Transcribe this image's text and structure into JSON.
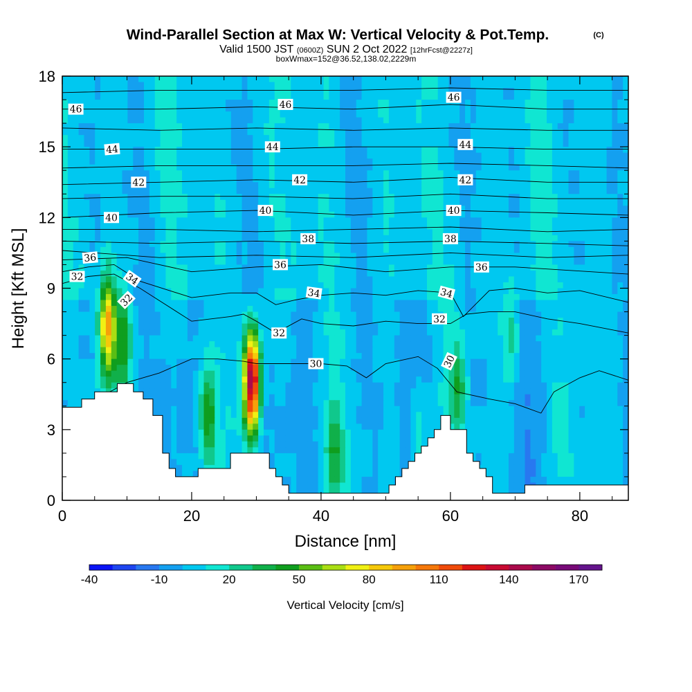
{
  "title": {
    "main": "Wind-Parallel Section at Max W: Vertical Velocity & Pot.Temp.",
    "copyright": "(C)",
    "valid_prefix": "Valid 1500 JST",
    "valid_zulu": "(0600Z)",
    "valid_date": "SUN 2 Oct 2022",
    "forecast_info": "[12hrFcst@2227z]",
    "box_info": "boxWmax=152@36.52,138.02,2229m"
  },
  "chart_data": {
    "type": "heatmap",
    "xlabel": "Distance [nm]",
    "ylabel": "Height [Kft MSL]",
    "xlim": [
      0,
      87.5
    ],
    "ylim": [
      0,
      18
    ],
    "x_ticks": [
      "0",
      "20",
      "40",
      "60",
      "80"
    ],
    "y_ticks": [
      "0",
      "3",
      "6",
      "9",
      "12",
      "15",
      "18"
    ],
    "colorbar": {
      "label": "Vertical Velocity [cm/s]",
      "tick_labels": [
        "-40",
        "-10",
        "20",
        "50",
        "80",
        "110",
        "140",
        "170"
      ],
      "levels": [
        -40,
        -30,
        -20,
        -10,
        0,
        10,
        20,
        30,
        40,
        50,
        60,
        70,
        80,
        90,
        100,
        110,
        120,
        130,
        140,
        150,
        160,
        170,
        180
      ],
      "colors": [
        "#0a14f5",
        "#1e46f0",
        "#2878f0",
        "#14a0f0",
        "#00c8f0",
        "#10e6d2",
        "#10c88c",
        "#10b04a",
        "#0f9e1e",
        "#5abe14",
        "#aade14",
        "#f0f014",
        "#f5c80a",
        "#f5a00a",
        "#f5780a",
        "#f04b0a",
        "#dc1414",
        "#c80a32",
        "#aa0a4b",
        "#8c0a64",
        "#780a78",
        "#64148c"
      ]
    },
    "background_value": 5,
    "updraft_cells": [
      {
        "x": 7.0,
        "y": 7.3,
        "peak": 90
      },
      {
        "x": 9.5,
        "y": 6.7,
        "peak": 40
      },
      {
        "x": 22.5,
        "y": 3.6,
        "peak": 50
      },
      {
        "x": 29.3,
        "y": 5.0,
        "peak": 152
      },
      {
        "x": 42.0,
        "y": 2.0,
        "peak": 30
      },
      {
        "x": 61.2,
        "y": 4.9,
        "peak": 32
      },
      {
        "x": 69.5,
        "y": 7.0,
        "peak": 25
      },
      {
        "x": 55.0,
        "y": 2.8,
        "peak": 22
      }
    ],
    "terrain": {
      "distance": [
        0,
        3,
        3,
        5,
        5,
        8.5,
        8.5,
        11,
        11,
        12.5,
        12.5,
        14,
        14,
        15.5,
        15.5,
        16.5,
        16.5,
        17.5,
        17.5,
        21,
        21,
        26,
        26,
        32,
        32,
        33,
        33,
        34,
        34,
        35,
        35,
        36,
        36,
        37,
        37,
        38,
        38,
        50.5,
        50.5,
        51.5,
        51.5,
        52.5,
        52.5,
        53.5,
        53.5,
        54.5,
        54.5,
        55.5,
        55.5,
        56.5,
        56.5,
        57.5,
        57.5,
        58.5,
        58.5,
        60,
        60,
        62.5,
        62.5,
        63.5,
        63.5,
        64.5,
        64.5,
        65.5,
        65.5,
        66.5,
        66.5,
        71.5,
        71.5,
        74.5,
        74.5,
        87.5
      ],
      "height": [
        3.95,
        3.95,
        4.3,
        4.3,
        4.6,
        4.6,
        4.95,
        4.95,
        4.6,
        4.6,
        4.3,
        4.3,
        3.6,
        3.6,
        2.0,
        2.0,
        1.35,
        1.35,
        1.0,
        1.0,
        1.35,
        1.35,
        2.0,
        2.0,
        1.35,
        1.35,
        1.0,
        1.0,
        0.65,
        0.65,
        0.3,
        0.3,
        0.3,
        0.3,
        0.3,
        0.3,
        0.3,
        0.3,
        0.65,
        0.65,
        1.0,
        1.0,
        1.35,
        1.35,
        1.65,
        1.65,
        2.0,
        2.0,
        2.3,
        2.3,
        2.65,
        2.65,
        3.0,
        3.0,
        3.6,
        3.6,
        3.0,
        3.0,
        2.0,
        2.0,
        1.65,
        1.65,
        1.35,
        1.35,
        1.0,
        1.0,
        0.3,
        0.3,
        0.65,
        0.65,
        0.65,
        0.65
      ]
    },
    "theta_contours": [
      {
        "level": 30,
        "x": [
          3.0,
          10,
          15,
          20,
          24,
          28,
          30,
          35,
          40,
          44,
          47,
          50,
          55,
          58,
          61,
          66,
          70,
          72,
          74,
          76,
          80,
          83,
          87.5
        ],
        "y": [
          3.95,
          5.0,
          5.4,
          6.0,
          6.0,
          5.9,
          5.8,
          5.8,
          5.8,
          5.7,
          5.2,
          5.8,
          6.1,
          5.6,
          4.6,
          4.3,
          4.1,
          3.9,
          3.7,
          4.6,
          5.2,
          5.5,
          5.1
        ]
      },
      {
        "level": 32,
        "x": [
          0,
          4,
          8,
          12,
          20,
          26,
          28,
          30,
          33,
          37,
          40,
          45,
          50,
          55,
          60,
          62.5,
          66,
          70,
          75,
          80,
          87.5
        ],
        "y": [
          9.2,
          9.5,
          9.6,
          9.0,
          7.6,
          7.8,
          7.9,
          7.6,
          7.1,
          7.7,
          7.5,
          7.4,
          7.6,
          7.5,
          7.5,
          7.9,
          8.0,
          8.0,
          7.7,
          7.5,
          7.1
        ]
      },
      {
        "level": 34,
        "x": [
          0,
          4,
          8,
          12,
          20,
          26,
          30,
          33,
          36,
          40,
          45,
          50,
          55,
          60,
          62,
          66,
          70,
          75,
          80,
          87.5
        ],
        "y": [
          9.7,
          9.9,
          10.0,
          9.3,
          8.6,
          8.8,
          8.8,
          8.3,
          8.5,
          8.7,
          8.8,
          8.7,
          8.9,
          8.8,
          7.8,
          8.9,
          9.0,
          8.8,
          8.9,
          8.4
        ]
      },
      {
        "level": 36,
        "x": [
          0,
          10,
          20,
          30,
          40,
          50,
          60,
          70,
          87.5
        ],
        "y": [
          10.2,
          10.3,
          9.7,
          9.9,
          10.0,
          9.7,
          9.9,
          9.9,
          9.6
        ]
      },
      {
        "level": 37,
        "x": [
          0,
          15,
          30,
          45,
          60,
          75,
          87.5
        ],
        "y": [
          10.6,
          10.3,
          10.4,
          10.3,
          10.5,
          10.3,
          10.4
        ]
      },
      {
        "level": 38,
        "x": [
          0,
          15,
          30,
          45,
          60,
          75,
          87.5
        ],
        "y": [
          11.0,
          10.9,
          11.0,
          10.9,
          11.0,
          10.9,
          10.8
        ]
      },
      {
        "level": 39,
        "x": [
          0,
          15,
          30,
          45,
          60,
          75,
          87.5
        ],
        "y": [
          11.5,
          11.5,
          11.4,
          11.5,
          11.6,
          11.4,
          11.5
        ]
      },
      {
        "level": 40,
        "x": [
          0,
          15,
          30,
          45,
          60,
          75,
          87.5
        ],
        "y": [
          12.0,
          12.2,
          12.3,
          12.1,
          12.3,
          12.2,
          12.1
        ]
      },
      {
        "level": 41,
        "x": [
          0,
          15,
          30,
          45,
          60,
          75,
          87.5
        ],
        "y": [
          12.8,
          12.9,
          12.9,
          12.8,
          13.0,
          12.8,
          12.8
        ]
      },
      {
        "level": 42,
        "x": [
          0,
          15,
          30,
          45,
          60,
          75,
          87.5
        ],
        "y": [
          13.4,
          13.5,
          13.6,
          13.5,
          13.7,
          13.5,
          13.5
        ]
      },
      {
        "level": 43,
        "x": [
          0,
          15,
          30,
          45,
          60,
          75,
          87.5
        ],
        "y": [
          14.1,
          14.2,
          14.2,
          14.2,
          14.3,
          14.2,
          14.1
        ]
      },
      {
        "level": 44,
        "x": [
          0,
          15,
          30,
          45,
          60,
          75,
          87.5
        ],
        "y": [
          14.9,
          14.9,
          14.9,
          15.0,
          15.0,
          14.9,
          14.9
        ]
      },
      {
        "level": 45,
        "x": [
          0,
          15,
          30,
          45,
          60,
          75,
          87.5
        ],
        "y": [
          15.8,
          15.7,
          15.8,
          15.7,
          15.8,
          15.7,
          15.7
        ]
      },
      {
        "level": 46,
        "x": [
          0,
          15,
          30,
          45,
          60,
          75,
          87.5
        ],
        "y": [
          16.6,
          16.6,
          16.7,
          16.6,
          16.8,
          16.6,
          16.6
        ]
      },
      {
        "level": 47,
        "x": [
          0,
          15,
          30,
          45,
          60,
          75,
          87.5
        ],
        "y": [
          17.3,
          17.4,
          17.4,
          17.4,
          17.5,
          17.4,
          17.4
        ]
      }
    ],
    "contour_labels": [
      {
        "text": "46",
        "x": 2.1,
        "y": 16.6,
        "angle": 0
      },
      {
        "text": "46",
        "x": 34.5,
        "y": 16.8,
        "angle": 0
      },
      {
        "text": "46",
        "x": 60.5,
        "y": 17.1,
        "angle": 0
      },
      {
        "text": "44",
        "x": 7.7,
        "y": 14.9,
        "angle": -5
      },
      {
        "text": "44",
        "x": 32.5,
        "y": 15.0,
        "angle": 0
      },
      {
        "text": "44",
        "x": 62.3,
        "y": 15.1,
        "angle": 0
      },
      {
        "text": "42",
        "x": 11.8,
        "y": 13.5,
        "angle": 0
      },
      {
        "text": "42",
        "x": 36.7,
        "y": 13.6,
        "angle": 0
      },
      {
        "text": "42",
        "x": 62.3,
        "y": 13.6,
        "angle": 0
      },
      {
        "text": "40",
        "x": 7.6,
        "y": 12.0,
        "angle": 0
      },
      {
        "text": "40",
        "x": 31.4,
        "y": 12.3,
        "angle": 0
      },
      {
        "text": "40",
        "x": 60.5,
        "y": 12.3,
        "angle": 0
      },
      {
        "text": "38",
        "x": 38.0,
        "y": 11.1,
        "angle": 0
      },
      {
        "text": "38",
        "x": 60.0,
        "y": 11.1,
        "angle": 0
      },
      {
        "text": "36",
        "x": 4.3,
        "y": 10.3,
        "angle": -5
      },
      {
        "text": "36",
        "x": 33.7,
        "y": 10.0,
        "angle": 0
      },
      {
        "text": "36",
        "x": 64.8,
        "y": 9.9,
        "angle": 0
      },
      {
        "text": "34",
        "x": 10.8,
        "y": 9.4,
        "angle": 35
      },
      {
        "text": "34",
        "x": 38.9,
        "y": 8.8,
        "angle": 8
      },
      {
        "text": "34",
        "x": 59.4,
        "y": 8.8,
        "angle": 15
      },
      {
        "text": "32",
        "x": 2.3,
        "y": 9.5,
        "angle": 0
      },
      {
        "text": "32",
        "x": 9.9,
        "y": 8.5,
        "angle": -45
      },
      {
        "text": "32",
        "x": 33.5,
        "y": 7.1,
        "angle": 0
      },
      {
        "text": "32",
        "x": 58.3,
        "y": 7.7,
        "angle": 0
      },
      {
        "text": "30",
        "x": 39.2,
        "y": 5.8,
        "angle": 0
      },
      {
        "text": "30",
        "x": 59.8,
        "y": 5.9,
        "angle": -65
      }
    ]
  }
}
